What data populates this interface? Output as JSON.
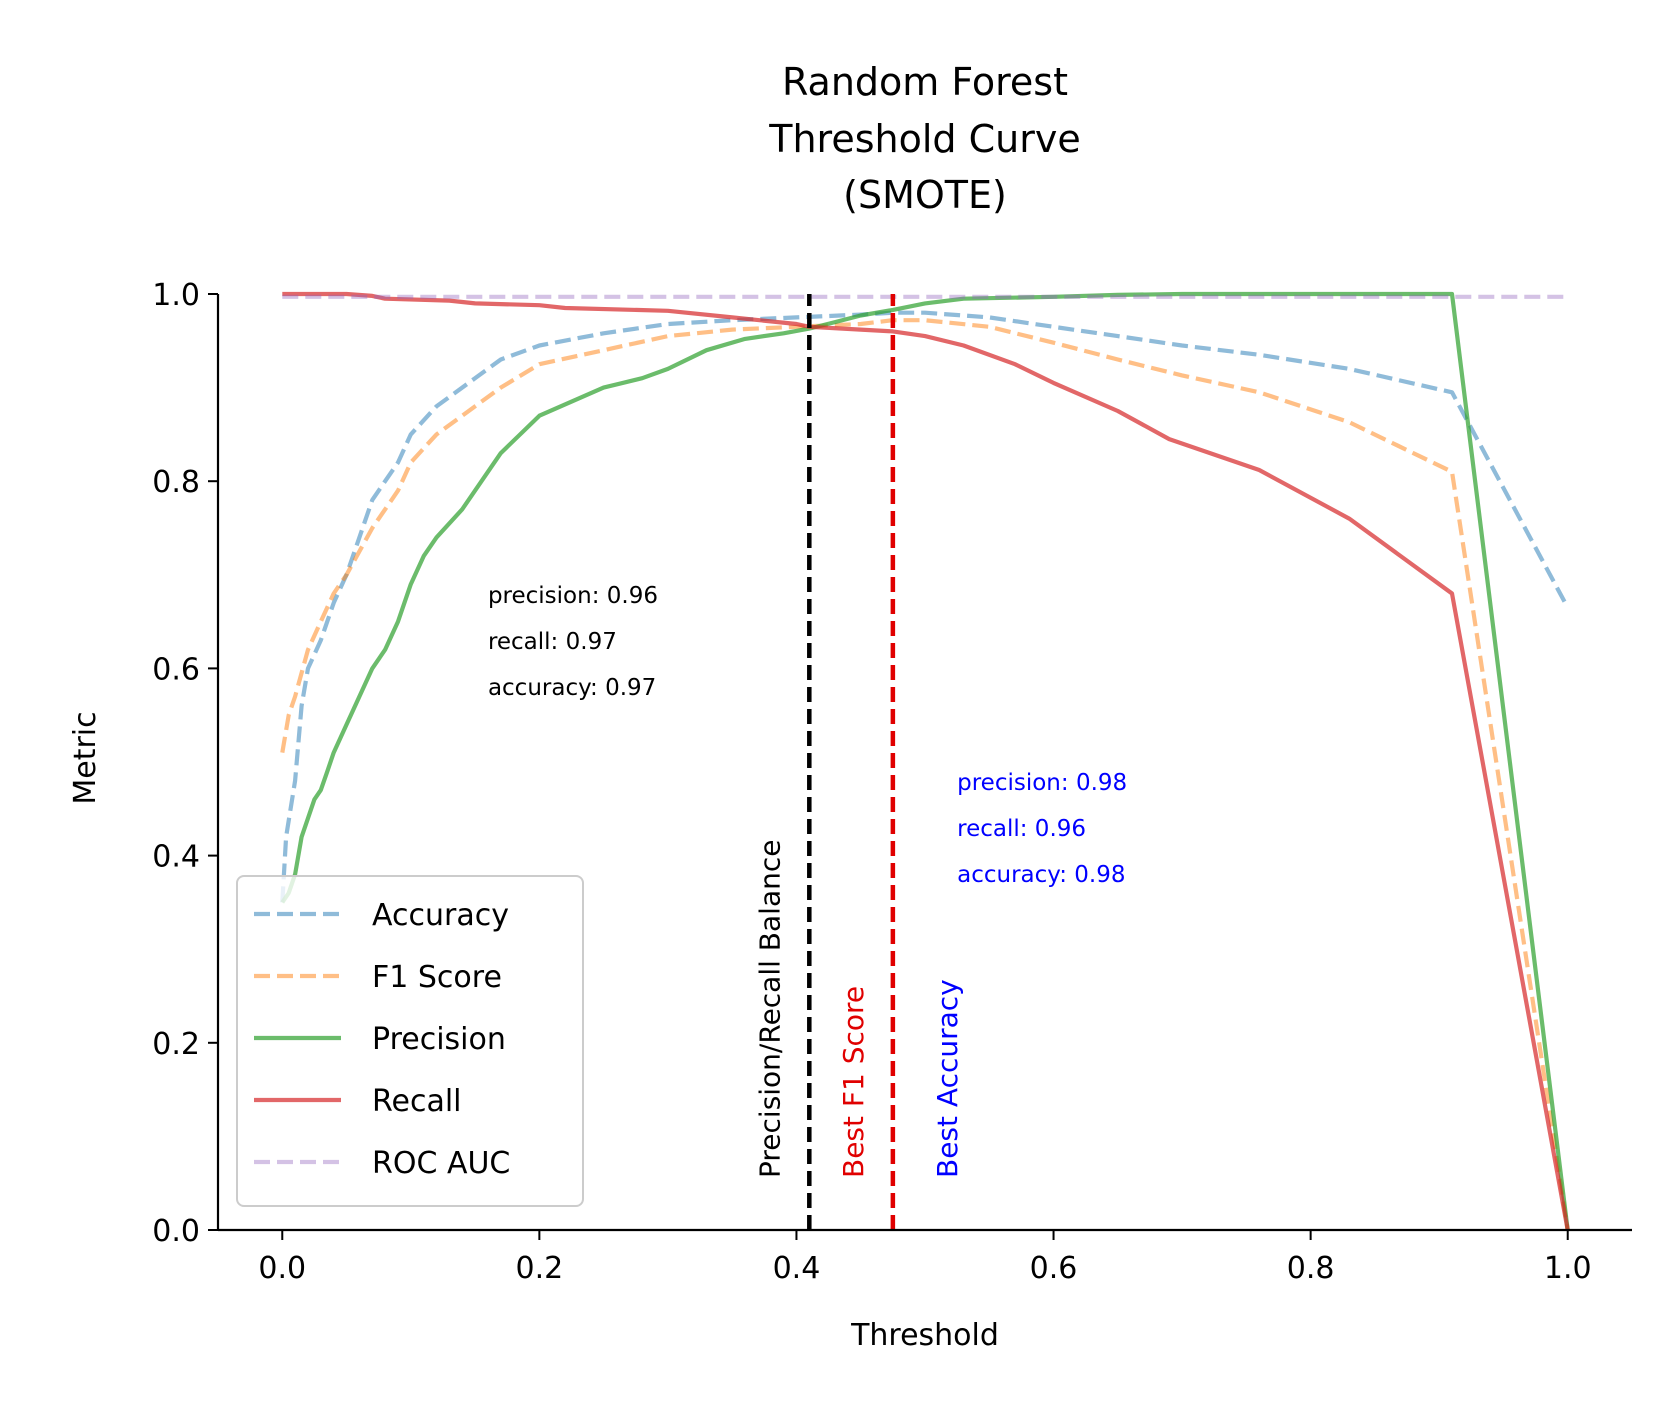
{
  "chart_data": {
    "type": "line",
    "title_lines": [
      "Random Forest",
      "Threshold Curve",
      "(SMOTE)"
    ],
    "xlabel": "Threshold",
    "ylabel": "Metric",
    "xlim": [
      -0.05,
      1.05
    ],
    "ylim": [
      0.0,
      1.0
    ],
    "xticks": [
      0.0,
      0.2,
      0.4,
      0.6,
      0.8,
      1.0
    ],
    "yticks": [
      0.0,
      0.2,
      0.4,
      0.6,
      0.8,
      1.0
    ],
    "xtick_labels": [
      "0.0",
      "0.2",
      "0.4",
      "0.6",
      "0.8",
      "1.0"
    ],
    "ytick_labels": [
      "0.0",
      "0.2",
      "0.4",
      "0.6",
      "0.8",
      "1.0"
    ],
    "grid": false,
    "legend_position": "lower-left",
    "series": [
      {
        "name": "Accuracy",
        "color": "#1f77b4",
        "dash": "dashed",
        "points": [
          [
            0.0,
            0.35
          ],
          [
            0.003,
            0.42
          ],
          [
            0.01,
            0.48
          ],
          [
            0.015,
            0.56
          ],
          [
            0.02,
            0.6
          ],
          [
            0.03,
            0.63
          ],
          [
            0.04,
            0.67
          ],
          [
            0.05,
            0.7
          ],
          [
            0.06,
            0.74
          ],
          [
            0.07,
            0.78
          ],
          [
            0.08,
            0.8
          ],
          [
            0.09,
            0.82
          ],
          [
            0.1,
            0.85
          ],
          [
            0.12,
            0.88
          ],
          [
            0.15,
            0.91
          ],
          [
            0.17,
            0.93
          ],
          [
            0.2,
            0.945
          ],
          [
            0.25,
            0.958
          ],
          [
            0.3,
            0.968
          ],
          [
            0.35,
            0.972
          ],
          [
            0.4,
            0.975
          ],
          [
            0.45,
            0.978
          ],
          [
            0.475,
            0.98
          ],
          [
            0.5,
            0.98
          ],
          [
            0.55,
            0.975
          ],
          [
            0.6,
            0.965
          ],
          [
            0.65,
            0.955
          ],
          [
            0.7,
            0.945
          ],
          [
            0.76,
            0.935
          ],
          [
            0.83,
            0.92
          ],
          [
            0.91,
            0.895
          ],
          [
            1.0,
            0.665
          ]
        ]
      },
      {
        "name": "F1 Score",
        "color": "#ff7f0e",
        "dash": "dashed",
        "points": [
          [
            0.0,
            0.51
          ],
          [
            0.005,
            0.55
          ],
          [
            0.01,
            0.57
          ],
          [
            0.02,
            0.62
          ],
          [
            0.03,
            0.65
          ],
          [
            0.04,
            0.68
          ],
          [
            0.05,
            0.7
          ],
          [
            0.07,
            0.75
          ],
          [
            0.09,
            0.79
          ],
          [
            0.1,
            0.82
          ],
          [
            0.12,
            0.85
          ],
          [
            0.15,
            0.88
          ],
          [
            0.17,
            0.9
          ],
          [
            0.2,
            0.925
          ],
          [
            0.25,
            0.94
          ],
          [
            0.3,
            0.955
          ],
          [
            0.35,
            0.962
          ],
          [
            0.4,
            0.965
          ],
          [
            0.45,
            0.968
          ],
          [
            0.475,
            0.972
          ],
          [
            0.5,
            0.972
          ],
          [
            0.55,
            0.965
          ],
          [
            0.6,
            0.948
          ],
          [
            0.65,
            0.93
          ],
          [
            0.7,
            0.913
          ],
          [
            0.76,
            0.895
          ],
          [
            0.83,
            0.863
          ],
          [
            0.91,
            0.81
          ],
          [
            1.0,
            0.0
          ]
        ]
      },
      {
        "name": "Precision",
        "color": "#2ca02c",
        "dash": "solid",
        "points": [
          [
            0.0,
            0.35
          ],
          [
            0.005,
            0.36
          ],
          [
            0.01,
            0.38
          ],
          [
            0.015,
            0.42
          ],
          [
            0.02,
            0.44
          ],
          [
            0.025,
            0.46
          ],
          [
            0.03,
            0.47
          ],
          [
            0.035,
            0.49
          ],
          [
            0.04,
            0.51
          ],
          [
            0.05,
            0.54
          ],
          [
            0.06,
            0.57
          ],
          [
            0.07,
            0.6
          ],
          [
            0.08,
            0.62
          ],
          [
            0.09,
            0.65
          ],
          [
            0.1,
            0.69
          ],
          [
            0.11,
            0.72
          ],
          [
            0.12,
            0.74
          ],
          [
            0.14,
            0.77
          ],
          [
            0.17,
            0.83
          ],
          [
            0.2,
            0.87
          ],
          [
            0.25,
            0.9
          ],
          [
            0.28,
            0.91
          ],
          [
            0.3,
            0.92
          ],
          [
            0.33,
            0.94
          ],
          [
            0.36,
            0.952
          ],
          [
            0.39,
            0.958
          ],
          [
            0.41,
            0.963
          ],
          [
            0.43,
            0.97
          ],
          [
            0.45,
            0.977
          ],
          [
            0.475,
            0.983
          ],
          [
            0.5,
            0.99
          ],
          [
            0.53,
            0.995
          ],
          [
            0.6,
            0.997
          ],
          [
            0.65,
            0.999
          ],
          [
            0.7,
            1.0
          ],
          [
            0.91,
            1.0
          ],
          [
            1.0,
            0.0
          ]
        ]
      },
      {
        "name": "Recall",
        "color": "#d62728",
        "dash": "solid",
        "points": [
          [
            0.0,
            1.0
          ],
          [
            0.05,
            1.0
          ],
          [
            0.07,
            0.998
          ],
          [
            0.08,
            0.995
          ],
          [
            0.13,
            0.993
          ],
          [
            0.15,
            0.99
          ],
          [
            0.2,
            0.988
          ],
          [
            0.22,
            0.985
          ],
          [
            0.3,
            0.982
          ],
          [
            0.35,
            0.975
          ],
          [
            0.4,
            0.968
          ],
          [
            0.41,
            0.965
          ],
          [
            0.45,
            0.962
          ],
          [
            0.475,
            0.96
          ],
          [
            0.5,
            0.955
          ],
          [
            0.53,
            0.945
          ],
          [
            0.57,
            0.925
          ],
          [
            0.6,
            0.905
          ],
          [
            0.65,
            0.875
          ],
          [
            0.69,
            0.845
          ],
          [
            0.76,
            0.812
          ],
          [
            0.83,
            0.76
          ],
          [
            0.91,
            0.68
          ],
          [
            1.0,
            0.0
          ]
        ]
      },
      {
        "name": "ROC AUC",
        "color": "#9467bd",
        "dash": "dashed",
        "points": [
          [
            0.0,
            0.997
          ],
          [
            1.0,
            0.997
          ]
        ]
      }
    ],
    "vlines": [
      {
        "x": 0.41,
        "color": "#000000",
        "label": "Precision/Recall Balance"
      },
      {
        "x": 0.475,
        "color": "#e00000",
        "label": "Best F1 Score"
      }
    ],
    "annotations": [
      {
        "color": "#000000",
        "label": "",
        "lines": [
          "precision: 0.96",
          "recall: 0.97",
          "accuracy: 0.97"
        ]
      },
      {
        "color": "#0000ff",
        "label": "Best Accuracy",
        "lines": [
          "precision: 0.98",
          "recall: 0.96",
          "accuracy: 0.98"
        ]
      }
    ]
  }
}
